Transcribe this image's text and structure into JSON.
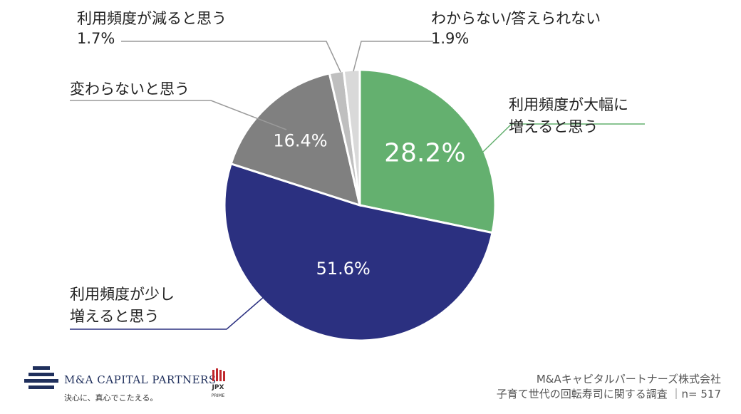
{
  "chart_data": {
    "type": "pie",
    "start": "12 o'clock",
    "direction": "clockwise",
    "slices": [
      {
        "label": "利用頻度が大幅に\n増えると思う",
        "value": 28.2,
        "display": "28.2%",
        "color": "#64b06f"
      },
      {
        "label": "利用頻度が少し\n増えると思う",
        "value": 51.6,
        "display": "51.6%",
        "color": "#2b3080"
      },
      {
        "label": "変わらないと思う",
        "value": 16.4,
        "display": "16.4%",
        "color": "#808080"
      },
      {
        "label": "利用頻度が減ると思う",
        "value": 1.7,
        "display": "1.7%",
        "color": "#bfbfbf"
      },
      {
        "label": "わからない/答えられない",
        "value": 1.9,
        "display": "1.9%",
        "color": "#d9d9d9"
      }
    ]
  },
  "footer": {
    "company_logo": {
      "name": "M&A CAPITAL PARTNERS",
      "tagline": "決心に、真心でこたえる。"
    },
    "exchange_badge": {
      "top": "JPX",
      "bottom": "PRIME"
    },
    "credit_line1": "M&Aキャピタルパートナーズ株式会社",
    "credit_line2": "子育て世代の回転寿司に関する調査 ｜n= 517"
  }
}
